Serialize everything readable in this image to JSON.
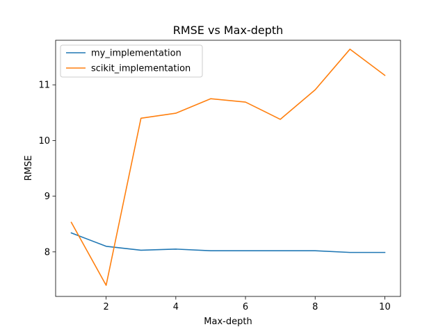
{
  "chart_data": {
    "type": "line",
    "title": "RMSE vs Max-depth",
    "xlabel": "Max-depth",
    "ylabel": "RMSE",
    "x": [
      1,
      2,
      3,
      4,
      5,
      6,
      7,
      8,
      9,
      10
    ],
    "xticks": [
      2,
      4,
      6,
      8,
      10
    ],
    "yticks": [
      8,
      9,
      10,
      11
    ],
    "xlim": [
      0.55,
      10.45
    ],
    "ylim": [
      7.2,
      11.8
    ],
    "grid": false,
    "legend_position": "upper-left",
    "series": [
      {
        "name": "my_implementation",
        "color": "#1f77b4",
        "values": [
          8.34,
          8.1,
          8.03,
          8.05,
          8.02,
          8.02,
          8.02,
          8.02,
          7.99,
          7.99
        ]
      },
      {
        "name": "scikit_implementation",
        "color": "#ff7f0e",
        "values": [
          8.53,
          7.4,
          10.4,
          10.49,
          10.75,
          10.69,
          10.38,
          10.91,
          11.64,
          11.17
        ]
      }
    ]
  }
}
